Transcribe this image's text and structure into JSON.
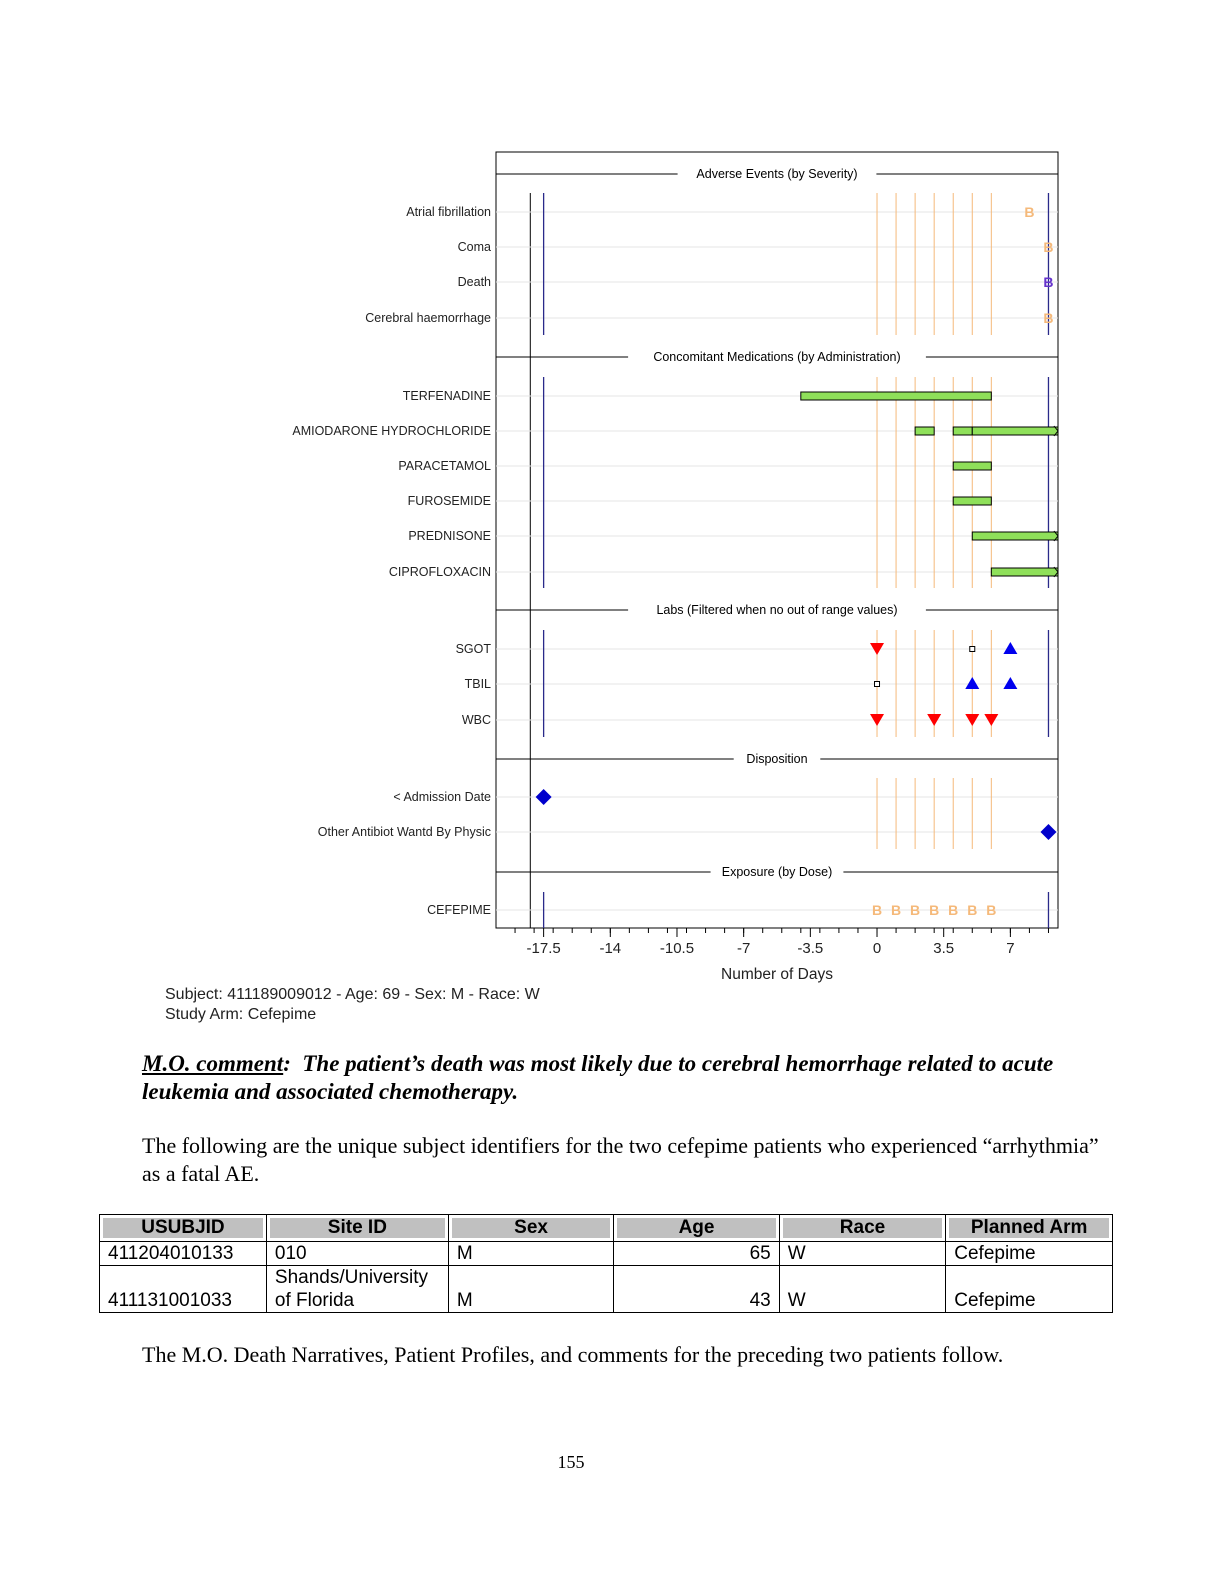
{
  "chart_data": {
    "type": "timeline",
    "xlabel": "Number of Days",
    "xlim": [
      -20,
      9.5
    ],
    "xticks": [
      -17.5,
      -14,
      -10.5,
      -7,
      -3.5,
      0,
      3.5,
      7
    ],
    "xtick_labels": [
      "-17.5",
      "-14",
      "-10.5",
      "-7",
      "-3.5",
      "0",
      "3.5",
      "7"
    ],
    "ref_lines": [
      -17.5,
      9
    ],
    "dose_days": [
      0,
      1,
      2,
      3,
      4,
      5,
      6
    ],
    "colors": {
      "mild": "#f5b97a",
      "severe": "#6633cc",
      "bar": "#8fe05a",
      "down": "#ff0000",
      "up": "#0000ee",
      "diamond": "#0000cc",
      "ref": "#2a2a8a"
    },
    "sections": [
      {
        "title": "Adverse Events (by Severity)",
        "rows": [
          {
            "label": "Atrial fibrillation",
            "marks": [
              {
                "type": "letter",
                "x": 8,
                "text": "B",
                "color": "mild"
              }
            ]
          },
          {
            "label": "Coma",
            "marks": [
              {
                "type": "letter",
                "x": 9,
                "text": "B",
                "color": "mild"
              }
            ]
          },
          {
            "label": "Death",
            "marks": [
              {
                "type": "letter",
                "x": 9,
                "text": "B",
                "color": "severe"
              }
            ]
          },
          {
            "label": "Cerebral haemorrhage",
            "marks": [
              {
                "type": "letter",
                "x": 9,
                "text": "B",
                "color": "mild"
              }
            ]
          }
        ]
      },
      {
        "title": "Concomitant Medications (by Administration)",
        "rows": [
          {
            "label": "TERFENADINE",
            "marks": [
              {
                "type": "bar",
                "x1": -4,
                "x2": 6
              }
            ]
          },
          {
            "label": "AMIODARONE HYDROCHLORIDE",
            "marks": [
              {
                "type": "bar",
                "x1": 2,
                "x2": 3
              },
              {
                "type": "bar",
                "x1": 4,
                "x2": 5
              },
              {
                "type": "bar",
                "x1": 5,
                "x2": 9.5,
                "arrow": true
              }
            ]
          },
          {
            "label": "PARACETAMOL",
            "marks": [
              {
                "type": "bar",
                "x1": 4,
                "x2": 6
              }
            ]
          },
          {
            "label": "FUROSEMIDE",
            "marks": [
              {
                "type": "bar",
                "x1": 4,
                "x2": 6
              }
            ]
          },
          {
            "label": "PREDNISONE",
            "marks": [
              {
                "type": "bar",
                "x1": 5,
                "x2": 9.5,
                "arrow": true
              }
            ]
          },
          {
            "label": "CIPROFLOXACIN",
            "marks": [
              {
                "type": "bar",
                "x1": 6,
                "x2": 9.5,
                "arrow": true
              }
            ]
          }
        ]
      },
      {
        "title": "Labs (Filtered when no out of range values)",
        "rows": [
          {
            "label": "SGOT",
            "marks": [
              {
                "type": "down",
                "x": 0
              },
              {
                "type": "square",
                "x": 5
              },
              {
                "type": "up",
                "x": 7
              }
            ]
          },
          {
            "label": "TBIL",
            "marks": [
              {
                "type": "square",
                "x": 0
              },
              {
                "type": "up",
                "x": 5
              },
              {
                "type": "up",
                "x": 7
              }
            ]
          },
          {
            "label": "WBC",
            "marks": [
              {
                "type": "down",
                "x": 0
              },
              {
                "type": "down",
                "x": 3
              },
              {
                "type": "down",
                "x": 5
              },
              {
                "type": "down",
                "x": 6
              }
            ]
          }
        ]
      },
      {
        "title": "Disposition",
        "rows": [
          {
            "label": "< Admission Date",
            "marks": [
              {
                "type": "diamond",
                "x": -17.5
              }
            ]
          },
          {
            "label": "Other Antibiot Wantd By Physic",
            "marks": [
              {
                "type": "diamond",
                "x": 9
              }
            ]
          }
        ]
      },
      {
        "title": "Exposure (by Dose)",
        "rows": [
          {
            "label": "CEFEPIME",
            "marks": [
              {
                "type": "letter",
                "x": 0,
                "text": "B",
                "color": "mild"
              },
              {
                "type": "letter",
                "x": 1,
                "text": "B",
                "color": "mild"
              },
              {
                "type": "letter",
                "x": 2,
                "text": "B",
                "color": "mild"
              },
              {
                "type": "letter",
                "x": 3,
                "text": "B",
                "color": "mild"
              },
              {
                "type": "letter",
                "x": 4,
                "text": "B",
                "color": "mild"
              },
              {
                "type": "letter",
                "x": 5,
                "text": "B",
                "color": "mild"
              },
              {
                "type": "letter",
                "x": 6,
                "text": "B",
                "color": "mild"
              }
            ]
          }
        ]
      }
    ]
  },
  "caption": {
    "line1": "Subject: 411189009012 - Age: 69 - Sex: M - Race: W",
    "line2": "Study Arm: Cefepime"
  },
  "comment": {
    "label": "M.O. comment",
    "colon": ":",
    "text": "The patient’s death was most likely due to cerebral hemorrhage related to acute leukemia and associated chemotherapy."
  },
  "intro_text": "The following are the unique subject identifiers for the two cefepime patients who experienced “arrhythmia” as a fatal AE.",
  "table": {
    "headers": [
      "USUBJID",
      "Site ID",
      "Sex",
      "Age",
      "Race",
      "Planned Arm"
    ],
    "rows": [
      [
        "411204010133",
        "010",
        "M",
        "65",
        "W",
        "Cefepime"
      ],
      [
        "411131001033",
        "Shands/University of Florida",
        "M",
        "43",
        "W",
        "Cefepime"
      ]
    ]
  },
  "closing_text": "The M.O. Death Narratives, Patient Profiles, and comments for the preceding two patients follow.",
  "page_number": "155"
}
